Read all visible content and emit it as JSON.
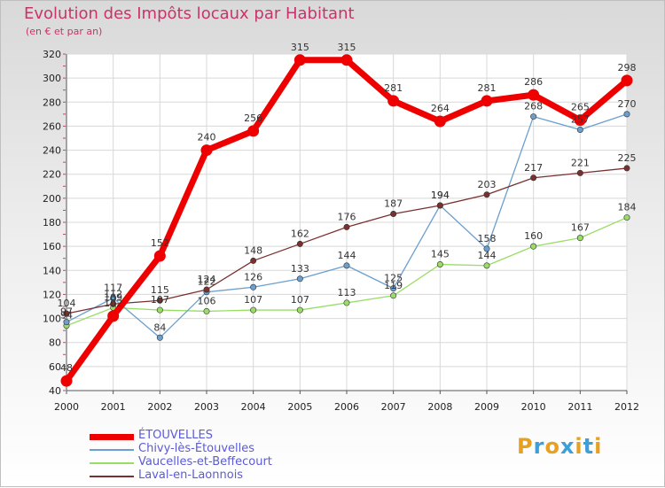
{
  "chart_data": {
    "type": "line",
    "title": "Evolution des Impôts locaux par Habitant",
    "subtitle": "(en € et par an)",
    "xlabel": "",
    "ylabel": "",
    "x": [
      "2000",
      "2001",
      "2002",
      "2003",
      "2004",
      "2005",
      "2006",
      "2007",
      "2008",
      "2009",
      "2010",
      "2011",
      "2012"
    ],
    "yticks": [
      "40",
      "60",
      "80",
      "100",
      "120",
      "140",
      "160",
      "180",
      "200",
      "220",
      "240",
      "260",
      "280",
      "300",
      "320"
    ],
    "ylim": [
      40,
      320
    ],
    "grid": true,
    "legend_position": "bottom-left",
    "series": [
      {
        "name": "ÉTOUVELLES",
        "color": "#ee0000",
        "values": [
          48,
          102,
          152,
          240,
          256,
          315,
          315,
          281,
          264,
          281,
          286,
          265,
          298
        ]
      },
      {
        "name": "Chivy-lès-Étouvelles",
        "color": "#6a9fd0",
        "values": [
          97,
          117,
          84,
          122,
          126,
          133,
          144,
          125,
          194,
          158,
          268,
          257,
          270
        ]
      },
      {
        "name": "Vaucelles-et-Beffecourt",
        "color": "#99dd66",
        "values": [
          94,
          109,
          107,
          106,
          107,
          107,
          113,
          119,
          145,
          144,
          160,
          167,
          184
        ]
      },
      {
        "name": "Laval-en-Laonnois",
        "color": "#7a3030",
        "values": [
          104,
          112,
          115,
          124,
          148,
          162,
          176,
          187,
          194,
          203,
          217,
          221,
          225
        ]
      }
    ]
  },
  "logo": {
    "letters": [
      "P",
      "r",
      "o",
      "x",
      "i",
      "t",
      "i"
    ],
    "colors": [
      "#e8a020",
      "#3d9fd8",
      "#e8a020",
      "#3d9fd8",
      "#e8a020",
      "#3d9fd8",
      "#e8a020"
    ]
  }
}
